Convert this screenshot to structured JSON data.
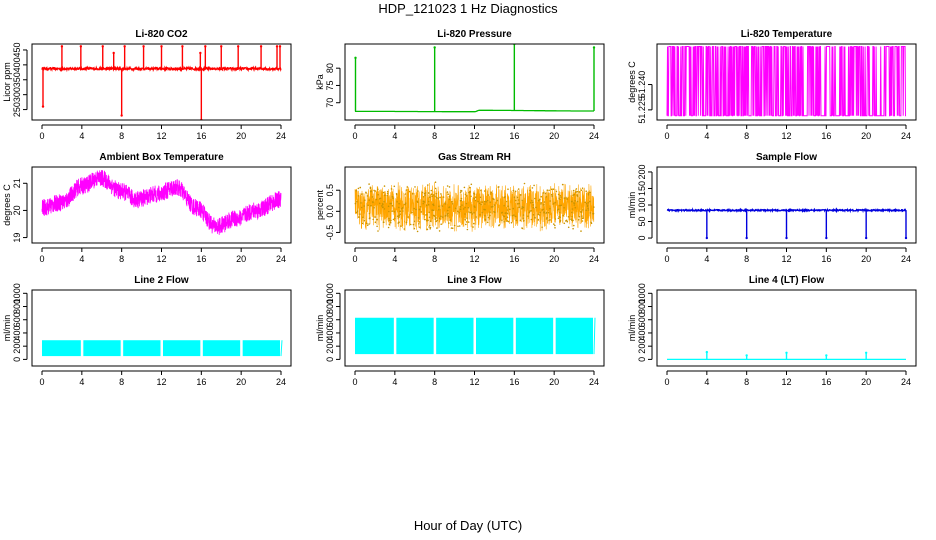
{
  "page": {
    "title": "HDP_121023 1 Hz Diagnostics",
    "xlabel": "Hour of Day (UTC)"
  },
  "chart_data": [
    {
      "type": "line",
      "title": "Li-820 CO2",
      "ylabel": "Licor ppm",
      "color": "#ff0000",
      "xlim": [
        0,
        24
      ],
      "xticks": [
        0,
        4,
        8,
        12,
        16,
        20,
        24
      ],
      "ylim": [
        215,
        470
      ],
      "yticks": [
        250,
        300,
        350,
        400,
        450
      ],
      "baseline": 387,
      "noise": 4,
      "events": [
        {
          "x": 0.1,
          "y": 260
        },
        {
          "x": 2.0,
          "y": 462
        },
        {
          "x": 3.9,
          "y": 462
        },
        {
          "x": 6.1,
          "y": 462
        },
        {
          "x": 7.2,
          "y": 440
        },
        {
          "x": 8.0,
          "y": 230
        },
        {
          "x": 8.3,
          "y": 462
        },
        {
          "x": 10.2,
          "y": 462
        },
        {
          "x": 12.0,
          "y": 462
        },
        {
          "x": 14.1,
          "y": 462
        },
        {
          "x": 15.9,
          "y": 440
        },
        {
          "x": 16.0,
          "y": 215
        },
        {
          "x": 16.4,
          "y": 462
        },
        {
          "x": 18.0,
          "y": 462
        },
        {
          "x": 19.7,
          "y": 462
        },
        {
          "x": 22.0,
          "y": 462
        },
        {
          "x": 23.6,
          "y": 462
        },
        {
          "x": 23.9,
          "y": 462
        }
      ]
    },
    {
      "type": "line",
      "title": "Li-820 Pressure",
      "ylabel": "kPa",
      "color": "#00bb00",
      "xlim": [
        0,
        24
      ],
      "xticks": [
        0,
        4,
        8,
        12,
        16,
        20,
        24
      ],
      "ylim": [
        65,
        87
      ],
      "yticks": [
        70,
        75,
        80
      ],
      "baseline": [
        [
          0,
          67.5
        ],
        [
          12,
          67.4
        ],
        [
          12.5,
          67.8
        ],
        [
          24,
          67.6
        ]
      ],
      "events": [
        {
          "x": 0.05,
          "y": 83
        },
        {
          "x": 8.0,
          "y": 86
        },
        {
          "x": 16.0,
          "y": 87
        },
        {
          "x": 24.0,
          "y": 86
        }
      ]
    },
    {
      "type": "line",
      "title": "Li-820 Temperature",
      "ylabel": "degrees C",
      "color": "#ff00ff",
      "xlim": [
        0,
        24
      ],
      "xticks": [
        0,
        4,
        8,
        12,
        16,
        20,
        24
      ],
      "ylim": [
        51.219,
        51.264
      ],
      "yticks": [
        51.225,
        51.24
      ],
      "low": 51.2215,
      "high": 51.2625
    },
    {
      "type": "line",
      "title": "Ambient Box Temperature",
      "ylabel": "degrees C",
      "color": "#ff00ff",
      "xlim": [
        0,
        24
      ],
      "xticks": [
        0,
        4,
        8,
        12,
        16,
        20,
        24
      ],
      "ylim": [
        18.8,
        21.6
      ],
      "yticks": [
        19.0,
        20.0,
        21.0
      ],
      "series_center": [
        [
          0,
          20.1
        ],
        [
          2,
          20.3
        ],
        [
          4,
          20.9
        ],
        [
          5.8,
          21.2
        ],
        [
          8,
          20.7
        ],
        [
          9.5,
          20.4
        ],
        [
          11.5,
          20.6
        ],
        [
          13.5,
          20.85
        ],
        [
          15.5,
          20.1
        ],
        [
          17.5,
          19.4
        ],
        [
          19.5,
          19.7
        ],
        [
          21.5,
          20.0
        ],
        [
          24,
          20.4
        ]
      ],
      "band": 0.32
    },
    {
      "type": "scatter",
      "title": "Gas Stream RH",
      "ylabel": "percent",
      "color": "#ffa500",
      "xlim": [
        0,
        24
      ],
      "xticks": [
        0,
        4,
        8,
        12,
        16,
        20,
        24
      ],
      "ylim": [
        -0.75,
        1.05
      ],
      "yticks": [
        -0.5,
        0.0,
        0.5
      ],
      "center": 0.1,
      "band": 0.6
    },
    {
      "type": "line",
      "title": "Sample Flow",
      "ylabel": "ml/min",
      "color": "#0000dd",
      "xlim": [
        0,
        24
      ],
      "xticks": [
        0,
        4,
        8,
        12,
        16,
        20,
        24
      ],
      "ylim": [
        -15,
        215
      ],
      "yticks": [
        0,
        50,
        100,
        150,
        200
      ],
      "baseline": 84,
      "noise": 2,
      "events": [
        {
          "x": 4.0,
          "y": 0
        },
        {
          "x": 8.0,
          "y": 0
        },
        {
          "x": 12.0,
          "y": 0
        },
        {
          "x": 16.0,
          "y": 0
        },
        {
          "x": 20.0,
          "y": 0
        },
        {
          "x": 24.0,
          "y": 0
        }
      ]
    },
    {
      "type": "area",
      "title": "Line 2 Flow",
      "ylabel": "ml/min",
      "color": "#00ffff",
      "xlim": [
        0,
        24
      ],
      "xticks": [
        0,
        4,
        8,
        12,
        16,
        20,
        24
      ],
      "ylim": [
        -100,
        1050
      ],
      "yticks": [
        0,
        200,
        400,
        600,
        800,
        1000
      ],
      "band_low": 50,
      "band_high": 290,
      "gaps": [
        4,
        8,
        12,
        16,
        20,
        24
      ]
    },
    {
      "type": "area",
      "title": "Line 3 Flow",
      "ylabel": "ml/min",
      "color": "#00ffff",
      "xlim": [
        0,
        24
      ],
      "xticks": [
        0,
        4,
        8,
        12,
        16,
        20,
        24
      ],
      "ylim": [
        -100,
        1050
      ],
      "yticks": [
        0,
        200,
        400,
        600,
        800,
        1000
      ],
      "band_low": 80,
      "band_high": 630,
      "gaps": [
        4,
        8,
        12,
        16,
        20,
        24
      ]
    },
    {
      "type": "line",
      "title": "Line 4 (LT) Flow",
      "ylabel": "ml/min",
      "color": "#00ffff",
      "xlim": [
        0,
        24
      ],
      "xticks": [
        0,
        4,
        8,
        12,
        16,
        20,
        24
      ],
      "ylim": [
        -100,
        1050
      ],
      "yticks": [
        0,
        200,
        400,
        600,
        800,
        1000
      ],
      "baseline": 0,
      "noise": 0,
      "events": [
        {
          "x": 4.0,
          "y": 110
        },
        {
          "x": 8.0,
          "y": 60
        },
        {
          "x": 12.0,
          "y": 100
        },
        {
          "x": 16.0,
          "y": 60
        },
        {
          "x": 20.0,
          "y": 100
        }
      ]
    }
  ]
}
